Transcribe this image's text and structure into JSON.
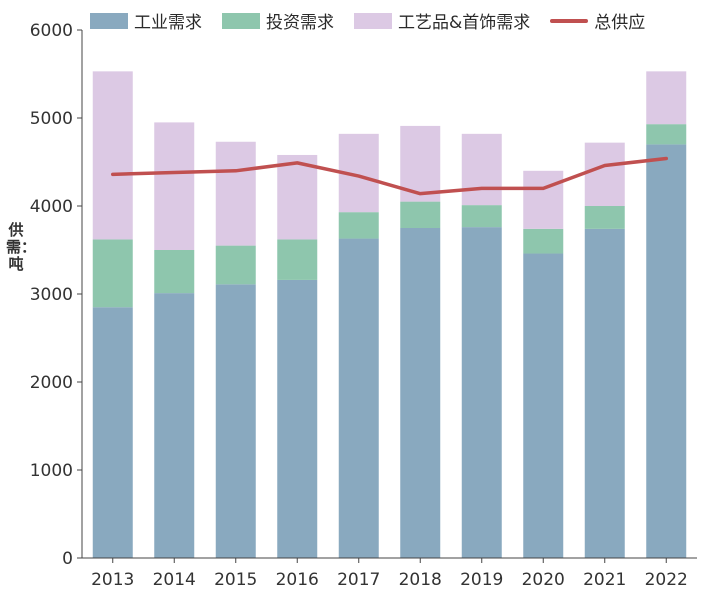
{
  "chart_data": {
    "type": "bar",
    "stacked": true,
    "categories": [
      "2013",
      "2014",
      "2015",
      "2016",
      "2017",
      "2018",
      "2019",
      "2020",
      "2021",
      "2022"
    ],
    "series": [
      {
        "name": "工业需求",
        "kind": "bar",
        "color": "#89a9bf",
        "values": [
          2850,
          3010,
          3110,
          3160,
          3630,
          3750,
          3760,
          3460,
          3740,
          4700
        ]
      },
      {
        "name": "投资需求",
        "kind": "bar",
        "color": "#8ec6ad",
        "values": [
          770,
          490,
          440,
          460,
          300,
          300,
          250,
          280,
          260,
          230
        ]
      },
      {
        "name": "工艺品&首饰需求",
        "kind": "bar",
        "color": "#dcc9e4",
        "values": [
          1910,
          1450,
          1180,
          960,
          890,
          860,
          810,
          660,
          720,
          600
        ]
      },
      {
        "name": "总供应",
        "kind": "line",
        "color": "#c05050",
        "values": [
          4360,
          4380,
          4400,
          4490,
          4340,
          4140,
          4200,
          4200,
          4460,
          4540
        ]
      }
    ],
    "ylabel": "供需：吨",
    "ylim": [
      0,
      6000
    ],
    "yticks": [
      "0",
      "1000",
      "2000",
      "3000",
      "4000",
      "5000",
      "6000"
    ],
    "grid": false,
    "legend": "top"
  }
}
